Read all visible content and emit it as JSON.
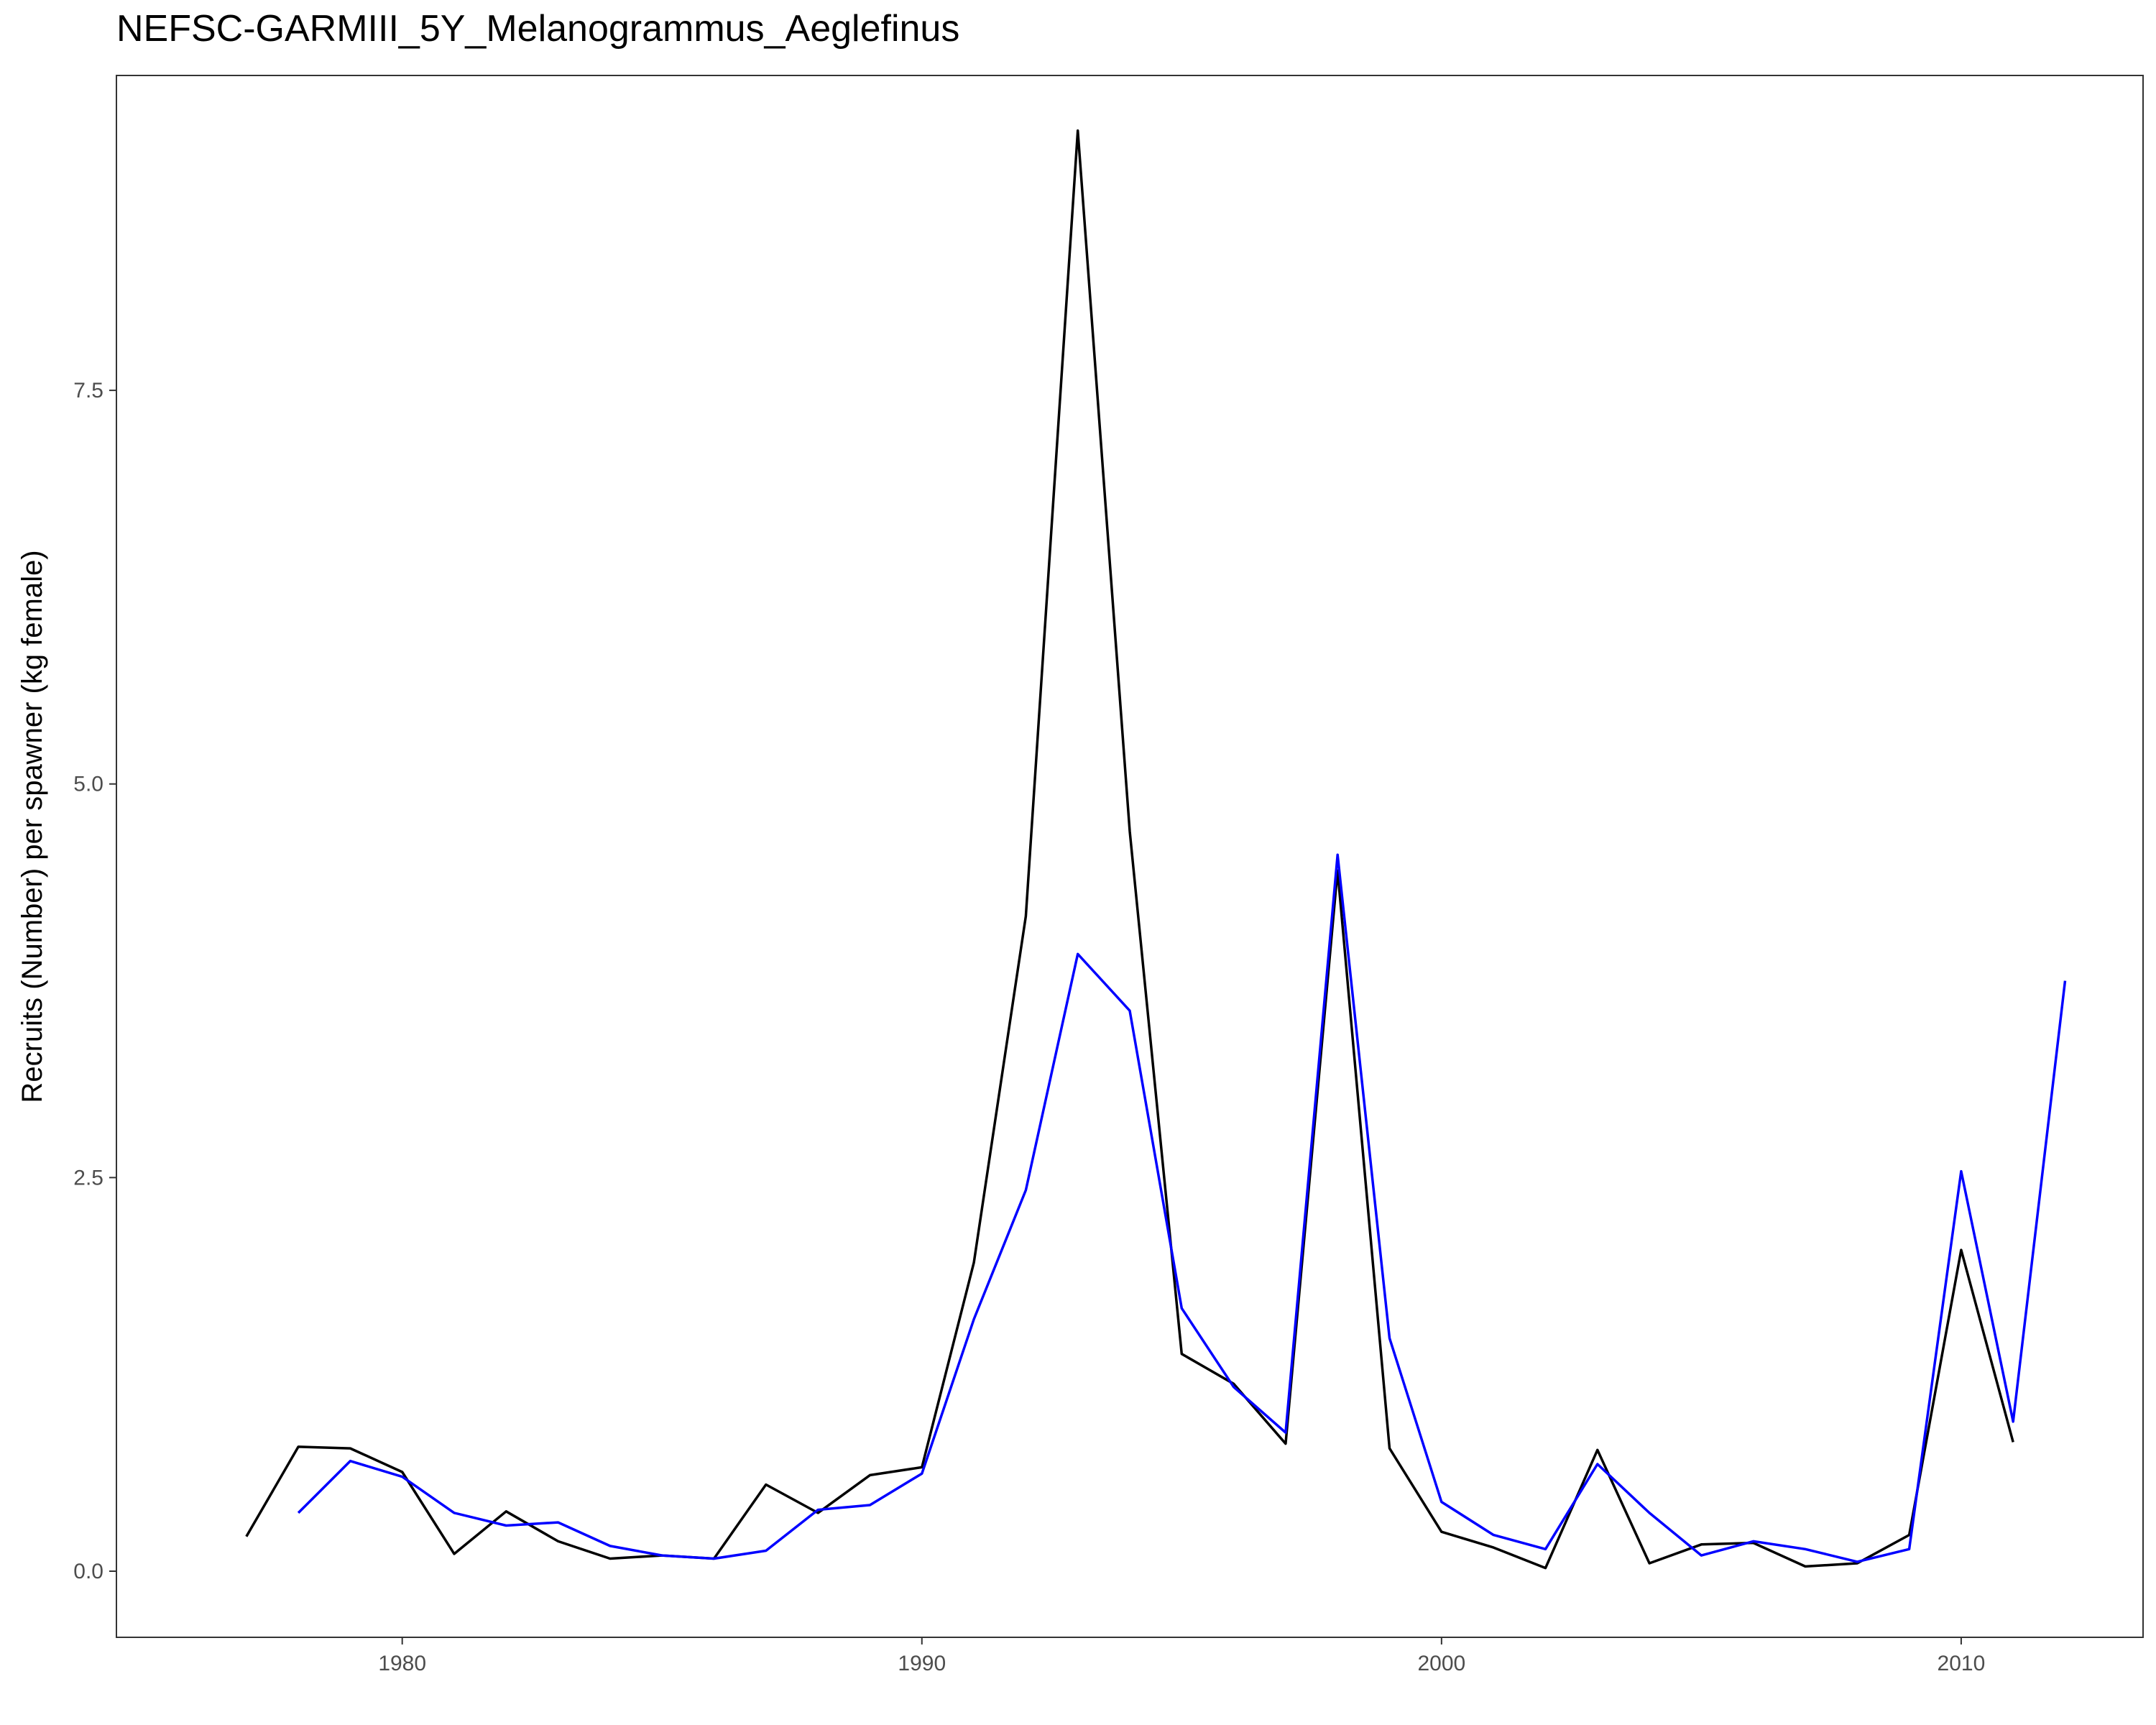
{
  "chart_data": {
    "type": "line",
    "title": "NEFSC-GARMIII_5Y_Melanogrammus_Aeglefinus",
    "xlabel": "",
    "ylabel": "Recruits (Number) per spawner (kg female)",
    "xlim": [
      1974.5,
      2013.5
    ],
    "ylim": [
      -0.42,
      9.5
    ],
    "x_ticks": [
      1980,
      1990,
      2000,
      2010
    ],
    "x_tick_labels": [
      "1980",
      "1990",
      "2000",
      "2010"
    ],
    "y_ticks": [
      0,
      2.5,
      5,
      7.5
    ],
    "y_tick_labels": [
      "0.0",
      "2.5",
      "5.0",
      "7.5"
    ],
    "grid": false,
    "legend": "none",
    "series": [
      {
        "color": "#000000",
        "x": [
          1977,
          1978,
          1979,
          1980,
          1981,
          1982,
          1983,
          1984,
          1985,
          1986,
          1987,
          1988,
          1989,
          1990,
          1991,
          1992,
          1993,
          1994,
          1995,
          1996,
          1997,
          1998,
          1999,
          2000,
          2001,
          2002,
          2003,
          2004,
          2005,
          2006,
          2007,
          2008,
          2009,
          2010,
          2011
        ],
        "y": [
          0.22,
          0.79,
          0.78,
          0.63,
          0.11,
          0.38,
          0.19,
          0.08,
          0.1,
          0.08,
          0.55,
          0.37,
          0.61,
          0.66,
          1.96,
          4.16,
          9.15,
          4.7,
          1.38,
          1.19,
          0.81,
          4.45,
          0.78,
          0.25,
          0.15,
          0.02,
          0.77,
          0.05,
          0.17,
          0.18,
          0.03,
          0.05,
          0.23,
          2.04,
          0.82
        ]
      },
      {
        "color": "#0000ff",
        "x": [
          1978,
          1979,
          1980,
          1981,
          1982,
          1983,
          1984,
          1985,
          1986,
          1987,
          1988,
          1989,
          1990,
          1991,
          1992,
          1993,
          1994,
          1995,
          1996,
          1997,
          1998,
          1999,
          2000,
          2001,
          2002,
          2003,
          2004,
          2005,
          2006,
          2007,
          2008,
          2009,
          2010,
          2011,
          2012
        ],
        "y": [
          0.37,
          0.7,
          0.6,
          0.37,
          0.29,
          0.31,
          0.16,
          0.1,
          0.08,
          0.13,
          0.39,
          0.42,
          0.62,
          1.6,
          2.42,
          3.92,
          3.56,
          1.67,
          1.17,
          0.88,
          4.55,
          1.48,
          0.44,
          0.23,
          0.14,
          0.68,
          0.37,
          0.1,
          0.19,
          0.14,
          0.06,
          0.14,
          2.54,
          0.95,
          3.75
        ]
      }
    ]
  }
}
